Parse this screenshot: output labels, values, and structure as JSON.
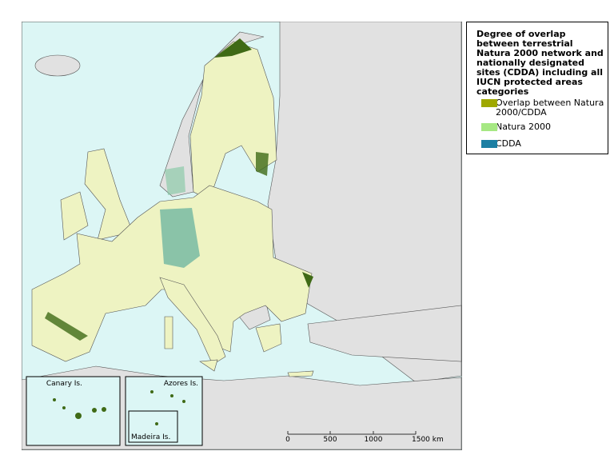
{
  "legend": {
    "title": "Degree of overlap between terrestrial Natura 2000 network and nationally designated sites (CDDA) including all IUCN protected areas categories",
    "items": [
      {
        "label": "Overlap between Natura 2000/CDDA",
        "color": "#9fa800"
      },
      {
        "label": "Natura 2000",
        "color": "#a6e883"
      },
      {
        "label": "CDDA",
        "color": "#1d7fa3"
      }
    ]
  },
  "insets": [
    "Canary Is.",
    "Azores Is.",
    "Madeira Is."
  ],
  "scale_bar": [
    "0",
    "500",
    "1000",
    "1500 km"
  ]
}
